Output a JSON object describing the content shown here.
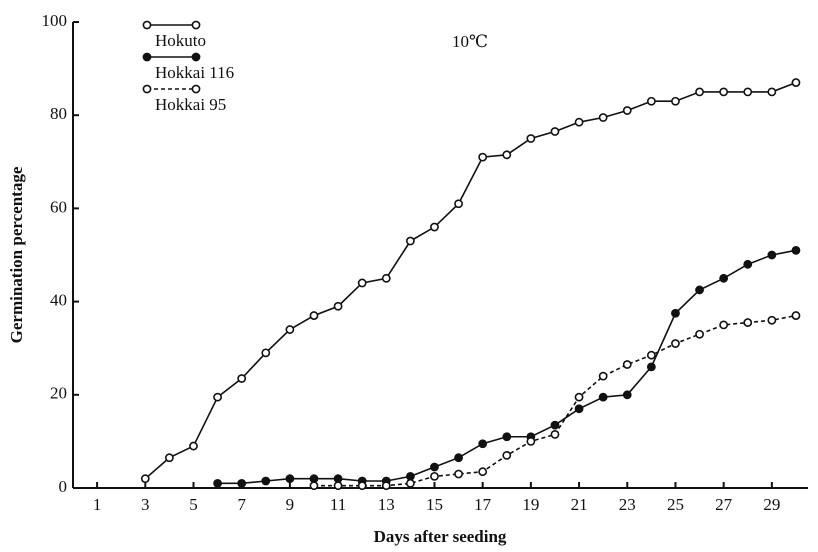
{
  "chart_data": {
    "type": "line",
    "annotation": "10℃",
    "xlabel": "Days after seeding",
    "ylabel": "Germination percentage",
    "xlim": [
      0,
      30.5
    ],
    "ylim": [
      0,
      100
    ],
    "xticks": [
      1,
      3,
      5,
      7,
      9,
      11,
      13,
      15,
      17,
      19,
      21,
      23,
      25,
      27,
      29
    ],
    "yticks": [
      0,
      20,
      40,
      60,
      80,
      100
    ],
    "legend": "upper left",
    "series": [
      {
        "name": "Hokuto",
        "color": "#111111",
        "marker": "open",
        "dash": "solid",
        "x": [
          3,
          4,
          5,
          6,
          7,
          8,
          9,
          10,
          11,
          12,
          13,
          14,
          15,
          16,
          17,
          18,
          19,
          20,
          21,
          22,
          23,
          24,
          25,
          26,
          27,
          28,
          29,
          30
        ],
        "values": [
          2,
          6.5,
          9,
          19.5,
          23.5,
          29,
          34,
          37,
          39,
          44,
          45,
          53,
          56,
          61,
          71,
          71.5,
          75,
          76.5,
          78.5,
          79.5,
          81,
          83,
          83,
          85,
          85,
          85,
          85,
          87
        ]
      },
      {
        "name": "Hokkai 116",
        "color": "#111111",
        "marker": "filled",
        "dash": "solid",
        "x": [
          6,
          7,
          8,
          9,
          10,
          11,
          12,
          13,
          14,
          15,
          16,
          17,
          18,
          19,
          20,
          21,
          22,
          23,
          24,
          25,
          26,
          27,
          28,
          29,
          30
        ],
        "values": [
          1,
          1,
          1.5,
          2,
          2,
          2,
          1.5,
          1.5,
          2.5,
          4.5,
          6.5,
          9.5,
          11,
          11,
          13.5,
          17,
          19.5,
          20,
          26,
          37.5,
          42.5,
          45,
          48,
          50,
          51
        ]
      },
      {
        "name": "Hokkai 95",
        "color": "#111111",
        "marker": "open",
        "dash": "dashed",
        "x": [
          10,
          11,
          12,
          13,
          14,
          15,
          16,
          17,
          18,
          19,
          20,
          21,
          22,
          23,
          24,
          25,
          26,
          27,
          28,
          29,
          30
        ],
        "values": [
          0.5,
          0.5,
          0.5,
          0.5,
          1,
          2.5,
          3,
          3.5,
          7,
          10,
          11.5,
          19.5,
          24,
          26.5,
          28.5,
          31,
          33,
          35,
          35.5,
          36,
          37
        ]
      }
    ]
  }
}
